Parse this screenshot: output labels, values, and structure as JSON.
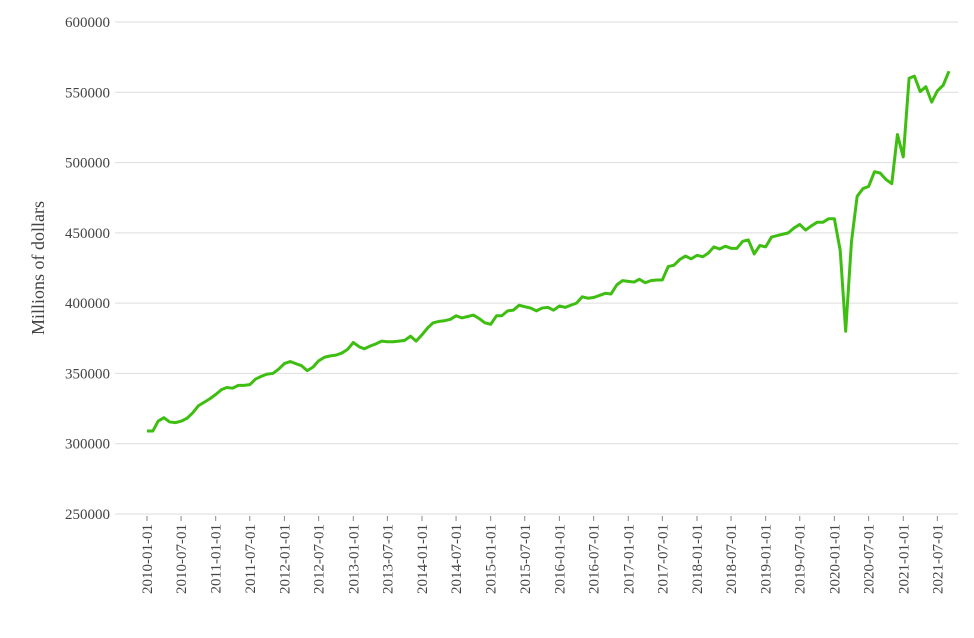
{
  "chart_data": {
    "type": "line",
    "y_label": "Millions of dollars",
    "x": [
      "2010-01-01",
      "2010-02-01",
      "2010-03-01",
      "2010-04-01",
      "2010-05-01",
      "2010-06-01",
      "2010-07-01",
      "2010-08-01",
      "2010-09-01",
      "2010-10-01",
      "2010-11-01",
      "2010-12-01",
      "2011-01-01",
      "2011-02-01",
      "2011-03-01",
      "2011-04-01",
      "2011-05-01",
      "2011-06-01",
      "2011-07-01",
      "2011-08-01",
      "2011-09-01",
      "2011-10-01",
      "2011-11-01",
      "2011-12-01",
      "2012-01-01",
      "2012-02-01",
      "2012-03-01",
      "2012-04-01",
      "2012-05-01",
      "2012-06-01",
      "2012-07-01",
      "2012-08-01",
      "2012-09-01",
      "2012-10-01",
      "2012-11-01",
      "2012-12-01",
      "2013-01-01",
      "2013-02-01",
      "2013-03-01",
      "2013-04-01",
      "2013-05-01",
      "2013-06-01",
      "2013-07-01",
      "2013-08-01",
      "2013-09-01",
      "2013-10-01",
      "2013-11-01",
      "2013-12-01",
      "2014-01-01",
      "2014-02-01",
      "2014-03-01",
      "2014-04-01",
      "2014-05-01",
      "2014-06-01",
      "2014-07-01",
      "2014-08-01",
      "2014-09-01",
      "2014-10-01",
      "2014-11-01",
      "2014-12-01",
      "2015-01-01",
      "2015-02-01",
      "2015-03-01",
      "2015-04-01",
      "2015-05-01",
      "2015-06-01",
      "2015-07-01",
      "2015-08-01",
      "2015-09-01",
      "2015-10-01",
      "2015-11-01",
      "2015-12-01",
      "2016-01-01",
      "2016-02-01",
      "2016-03-01",
      "2016-04-01",
      "2016-05-01",
      "2016-06-01",
      "2016-07-01",
      "2016-08-01",
      "2016-09-01",
      "2016-10-01",
      "2016-11-01",
      "2016-12-01",
      "2017-01-01",
      "2017-02-01",
      "2017-03-01",
      "2017-04-01",
      "2017-05-01",
      "2017-06-01",
      "2017-07-01",
      "2017-08-01",
      "2017-09-01",
      "2017-10-01",
      "2017-11-01",
      "2017-12-01",
      "2018-01-01",
      "2018-02-01",
      "2018-03-01",
      "2018-04-01",
      "2018-05-01",
      "2018-06-01",
      "2018-07-01",
      "2018-08-01",
      "2018-09-01",
      "2018-10-01",
      "2018-11-01",
      "2018-12-01",
      "2019-01-01",
      "2019-02-01",
      "2019-03-01",
      "2019-04-01",
      "2019-05-01",
      "2019-06-01",
      "2019-07-01",
      "2019-08-01",
      "2019-09-01",
      "2019-10-01",
      "2019-11-01",
      "2019-12-01",
      "2020-01-01",
      "2020-02-01",
      "2020-03-01",
      "2020-04-01",
      "2020-05-01",
      "2020-06-01",
      "2020-07-01",
      "2020-08-01",
      "2020-09-01",
      "2020-10-01",
      "2020-11-01",
      "2020-12-01",
      "2021-01-01",
      "2021-02-01",
      "2021-03-01",
      "2021-04-01",
      "2021-05-01",
      "2021-06-01",
      "2021-07-01",
      "2021-08-01",
      "2021-09-01"
    ],
    "series": [
      {
        "color": "#3fbe12",
        "values": [
          309000,
          309000,
          316000,
          318500,
          315500,
          315000,
          316000,
          318000,
          322000,
          327000,
          329500,
          332000,
          335000,
          338500,
          340000,
          339500,
          341500,
          341500,
          342000,
          346000,
          348000,
          349500,
          350000,
          353000,
          357000,
          358500,
          357000,
          355500,
          352000,
          354500,
          359000,
          361500,
          362500,
          363000,
          364500,
          367000,
          372000,
          369000,
          367500,
          369500,
          371000,
          373000,
          372500,
          372500,
          373000,
          373500,
          376500,
          373000,
          377500,
          382500,
          386000,
          387000,
          387500,
          388500,
          391000,
          389500,
          390500,
          391500,
          389000,
          386000,
          385000,
          391000,
          391000,
          394500,
          395000,
          398500,
          397500,
          396500,
          394500,
          396500,
          397000,
          395000,
          398000,
          397000,
          398500,
          400000,
          404500,
          403500,
          404000,
          405500,
          407000,
          406500,
          413000,
          416000,
          415500,
          415000,
          417000,
          414500,
          416000,
          416500,
          416500,
          426000,
          427000,
          431000,
          433500,
          431500,
          434000,
          433000,
          435500,
          440000,
          438500,
          440500,
          439000,
          439000,
          444000,
          445000,
          435000,
          441000,
          440000,
          447000,
          448000,
          449000,
          450000,
          453500,
          456000,
          452000,
          455000,
          457500,
          457500,
          460000,
          460000,
          437500,
          380000,
          444000,
          476000,
          481500,
          483000,
          493500,
          492500,
          488000,
          485000,
          520000,
          504000,
          560000,
          561500,
          550500,
          554000,
          543000,
          551000,
          555000,
          565000
        ]
      }
    ],
    "xlim": [
      "2010-01-01",
      "2021-09-01"
    ],
    "xticks": [
      "2010-01-01",
      "2010-07-01",
      "2011-01-01",
      "2011-07-01",
      "2012-01-01",
      "2012-07-01",
      "2013-01-01",
      "2013-07-01",
      "2014-01-01",
      "2014-07-01",
      "2015-01-01",
      "2015-07-01",
      "2016-01-01",
      "2016-07-01",
      "2017-01-01",
      "2017-07-01",
      "2018-01-01",
      "2018-07-01",
      "2019-01-01",
      "2019-07-01",
      "2020-01-01",
      "2020-07-01",
      "2021-01-01",
      "2021-07-01"
    ],
    "ylim": [
      250000,
      600000
    ],
    "yticks": [
      250000,
      300000,
      350000,
      400000,
      450000,
      500000,
      550000,
      600000
    ],
    "grid": true
  }
}
